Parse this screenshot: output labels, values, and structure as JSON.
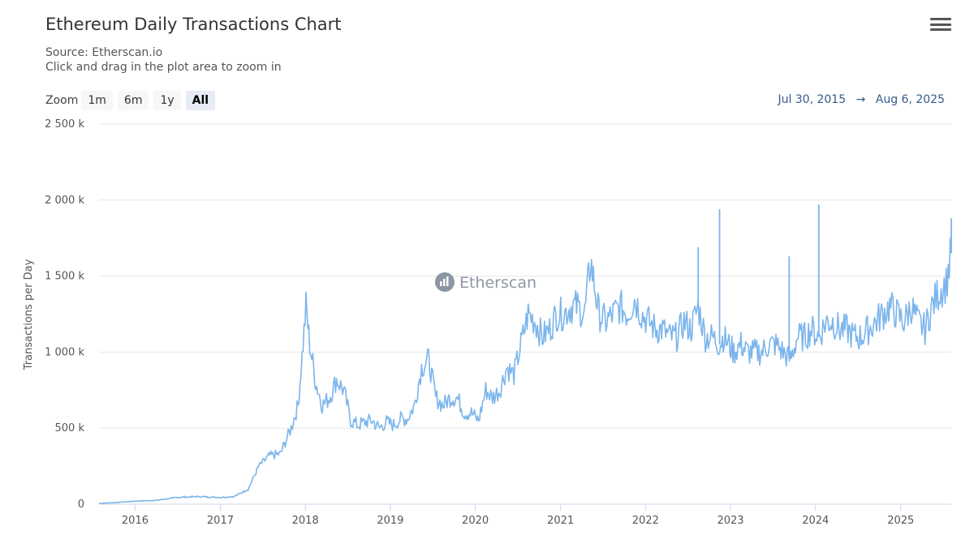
{
  "header": {
    "title": "Ethereum Daily Transactions Chart",
    "source": "Source: Etherscan.io",
    "hint": "Click and drag in the plot area to zoom in"
  },
  "zoom": {
    "label": "Zoom",
    "buttons": [
      "1m",
      "6m",
      "1y",
      "All"
    ],
    "active": "All"
  },
  "range": {
    "from": "Jul 30, 2015",
    "arrow": "→",
    "to": "Aug 6, 2025"
  },
  "watermark": "Etherscan",
  "colors": {
    "line": "#7cb5ec",
    "grid": "#e6e6e6",
    "active_zoom_bg": "#e6ebf5",
    "range_text": "#335c8c"
  },
  "chart_data": {
    "type": "line",
    "ylabel": "Transactions per Day",
    "ylim": [
      0,
      2500000
    ],
    "y_tick_labels": [
      "0",
      "500 k",
      "1 000 k",
      "1 500 k",
      "2 000 k",
      "2 500 k"
    ],
    "y_tick_values": [
      0,
      500000,
      1000000,
      1500000,
      2000000,
      2500000
    ],
    "x_tick_labels": [
      "2016",
      "2017",
      "2018",
      "2019",
      "2020",
      "2021",
      "2022",
      "2023",
      "2024",
      "2025"
    ],
    "xlim": [
      "2015-07-30",
      "2025-08-06"
    ],
    "series": [
      {
        "x": [
          "2015-07-30",
          "2015-10-01",
          "2016-01-01",
          "2016-04-01",
          "2016-07-01",
          "2016-10-01",
          "2017-01-01",
          "2017-03-01",
          "2017-05-01",
          "2017-06-15",
          "2017-08-01",
          "2017-09-15",
          "2017-11-01",
          "2017-12-01",
          "2018-01-04",
          "2018-01-20",
          "2018-02-15",
          "2018-03-15",
          "2018-04-15",
          "2018-05-15",
          "2018-06-15",
          "2018-07-15",
          "2018-08-15",
          "2018-09-15",
          "2018-10-15",
          "2018-11-15",
          "2018-12-15",
          "2019-01-15",
          "2019-02-15",
          "2019-03-15",
          "2019-04-15",
          "2019-05-15",
          "2019-06-15",
          "2019-07-15",
          "2019-08-15",
          "2019-09-15",
          "2019-10-15",
          "2019-11-15",
          "2019-12-15",
          "2020-01-15",
          "2020-02-15",
          "2020-03-15",
          "2020-04-15",
          "2020-05-15",
          "2020-06-15",
          "2020-07-15",
          "2020-08-15",
          "2020-09-15",
          "2020-10-15",
          "2020-11-15",
          "2020-12-15",
          "2021-01-15",
          "2021-02-15",
          "2021-03-15",
          "2021-04-15",
          "2021-05-10",
          "2021-06-15",
          "2021-07-15",
          "2021-08-15",
          "2021-09-15",
          "2021-10-15",
          "2021-11-15",
          "2021-12-15",
          "2022-01-15",
          "2022-02-15",
          "2022-03-15",
          "2022-04-15",
          "2022-05-15",
          "2022-06-15",
          "2022-07-15",
          "2022-08-15",
          "2022-09-15",
          "2022-10-15",
          "2022-11-15",
          "2022-12-01",
          "2023-01-15",
          "2023-02-15",
          "2023-03-15",
          "2023-04-15",
          "2023-05-15",
          "2023-06-15",
          "2023-07-15",
          "2023-08-15",
          "2023-09-15",
          "2023-10-15",
          "2023-11-15",
          "2023-12-15",
          "2024-01-15",
          "2024-02-15",
          "2024-03-15",
          "2024-04-15",
          "2024-05-15",
          "2024-06-15",
          "2024-07-15",
          "2024-08-15",
          "2024-09-15",
          "2024-10-15",
          "2024-11-15",
          "2024-12-15",
          "2025-01-15",
          "2025-02-15",
          "2025-03-15",
          "2025-04-15",
          "2025-05-15",
          "2025-06-15",
          "2025-07-15",
          "2025-08-06"
        ],
        "y": [
          5000,
          10000,
          20000,
          25000,
          45000,
          50000,
          45000,
          50000,
          100000,
          250000,
          320000,
          330000,
          500000,
          650000,
          1300000,
          1050000,
          800000,
          650000,
          700000,
          820000,
          750000,
          550000,
          520000,
          540000,
          550000,
          500000,
          540000,
          520000,
          560000,
          560000,
          650000,
          900000,
          950000,
          700000,
          650000,
          700000,
          700000,
          600000,
          600000,
          550000,
          750000,
          700000,
          750000,
          900000,
          850000,
          1050000,
          1250000,
          1200000,
          1100000,
          1150000,
          1250000,
          1250000,
          1300000,
          1300000,
          1250000,
          1600000,
          1250000,
          1200000,
          1250000,
          1300000,
          1250000,
          1350000,
          1250000,
          1200000,
          1150000,
          1150000,
          1100000,
          1100000,
          1200000,
          1150000,
          1300000,
          1100000,
          1100000,
          1050000,
          1100000,
          1000000,
          1050000,
          1000000,
          1000000,
          1000000,
          1050000,
          1050000,
          1000000,
          950000,
          1100000,
          1100000,
          1150000,
          1100000,
          1200000,
          1200000,
          1150000,
          1150000,
          1100000,
          1100000,
          1150000,
          1200000,
          1250000,
          1300000,
          1250000,
          1200000,
          1300000,
          1200000,
          1150000,
          1300000,
          1400000,
          1450000,
          1650000
        ]
      }
    ],
    "spikes": [
      {
        "x": "2022-08-15",
        "y": 1690000
      },
      {
        "x": "2022-11-15",
        "y": 1940000
      },
      {
        "x": "2023-09-10",
        "y": 1630000
      },
      {
        "x": "2024-01-15",
        "y": 1970000
      },
      {
        "x": "2025-08-06",
        "y": 1880000
      }
    ]
  }
}
